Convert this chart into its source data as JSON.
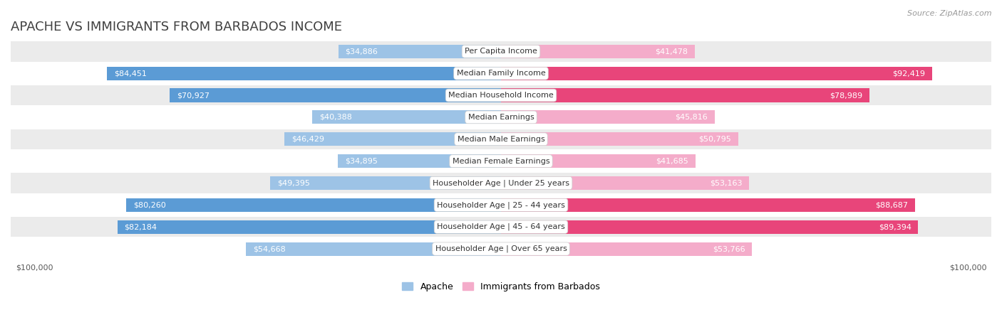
{
  "title": "Apache vs Immigrants from Barbados Income",
  "source": "Source: ZipAtlas.com",
  "categories": [
    "Per Capita Income",
    "Median Family Income",
    "Median Household Income",
    "Median Earnings",
    "Median Male Earnings",
    "Median Female Earnings",
    "Householder Age | Under 25 years",
    "Householder Age | 25 - 44 years",
    "Householder Age | 45 - 64 years",
    "Householder Age | Over 65 years"
  ],
  "apache_values": [
    34886,
    84451,
    70927,
    40388,
    46429,
    34895,
    49395,
    80260,
    82184,
    54668
  ],
  "barbados_values": [
    41478,
    92419,
    78989,
    45816,
    50795,
    41685,
    53163,
    88687,
    89394,
    53766
  ],
  "apache_labels": [
    "$34,886",
    "$84,451",
    "$70,927",
    "$40,388",
    "$46,429",
    "$34,895",
    "$49,395",
    "$80,260",
    "$82,184",
    "$54,668"
  ],
  "barbados_labels": [
    "$41,478",
    "$92,419",
    "$78,989",
    "$45,816",
    "$50,795",
    "$41,685",
    "$53,163",
    "$88,687",
    "$89,394",
    "$53,766"
  ],
  "apache_color_large": "#5B9BD5",
  "apache_color_small": "#9DC3E6",
  "barbados_color_large": "#E8457A",
  "barbados_color_small": "#F4ACCA",
  "label_inside_color": "#ffffff",
  "label_outside_color": "#595959",
  "background_color": "#ffffff",
  "row_bg_color": "#EBEBEB",
  "row_alt_bg": "#ffffff",
  "max_value": 100000,
  "large_threshold": 60000,
  "legend_apache": "Apache",
  "legend_barbados": "Immigrants from Barbados",
  "xlabel_left": "$100,000",
  "xlabel_right": "$100,000",
  "title_fontsize": 13,
  "label_fontsize": 8,
  "category_fontsize": 8,
  "legend_fontsize": 9,
  "source_fontsize": 8
}
